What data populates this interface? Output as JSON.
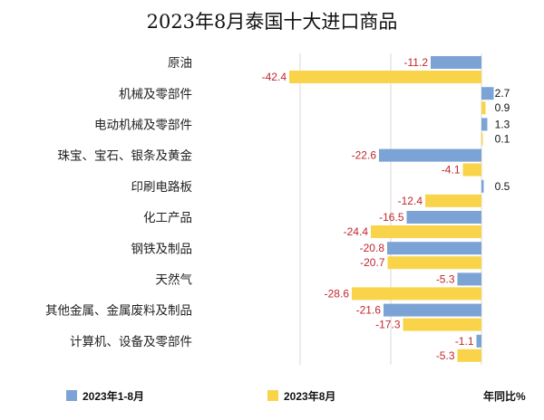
{
  "chart_data": {
    "type": "bar",
    "orientation": "horizontal",
    "title": "2023年8月泰国十大进口商品",
    "categories": [
      "原油",
      "机械及零部件",
      "电动机械及零部件",
      "珠宝、宝石、银条及黄金",
      "印刷电路板",
      "化工产品",
      "钢铁及制品",
      "天然气",
      "其他金属、金属废料及制品",
      "计算机、设备及零部件"
    ],
    "series": [
      {
        "name": "2023年1-8月",
        "color": "#7ba3d6",
        "values": [
          -11.2,
          2.7,
          1.3,
          -22.6,
          0.5,
          -16.5,
          -20.8,
          -5.3,
          -21.6,
          -1.1
        ]
      },
      {
        "name": "2023年8月",
        "color": "#f9d44a",
        "values": [
          -42.4,
          0.9,
          0.1,
          -4.1,
          -12.4,
          -24.4,
          -20.7,
          -28.6,
          -17.3,
          -5.3
        ]
      }
    ],
    "value_labels": [
      [
        "-11.2",
        "2.7",
        "1.3",
        "-22.6",
        "0.5",
        "-16.5",
        "-20.8",
        "-5.3",
        "-21.6",
        "-1.1"
      ],
      [
        "-42.4",
        "0.9",
        "0.1",
        "-4.1",
        "-12.4",
        "-24.4",
        "-20.7",
        "-28.6",
        "-17.3",
        "-5.3"
      ]
    ],
    "unit_label": "年同比%",
    "xlim": [
      -45,
      3
    ],
    "grid": true,
    "legend_position": "bottom"
  }
}
